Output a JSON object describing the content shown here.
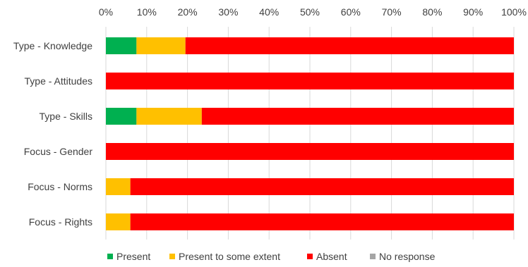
{
  "chart_data": {
    "type": "bar",
    "orientation": "horizontal",
    "stacked": "100%",
    "xlim": [
      0,
      100
    ],
    "x_tick_labels": [
      "0%",
      "10%",
      "20%",
      "30%",
      "40%",
      "50%",
      "60%",
      "70%",
      "80%",
      "90%",
      "100%"
    ],
    "categories": [
      "Type - Knowledge",
      "Type - Attitudes",
      "Type - Skills",
      "Focus - Gender",
      "Focus - Norms",
      "Focus - Rights"
    ],
    "series": [
      {
        "name": "Present",
        "color": "#00b050",
        "values": [
          7.5,
          0,
          7.5,
          0,
          0,
          0
        ]
      },
      {
        "name": "Present to some extent",
        "color": "#ffc000",
        "values": [
          12,
          0,
          16,
          0,
          6,
          6
        ]
      },
      {
        "name": "Absent",
        "color": "#ff0000",
        "values": [
          80.5,
          100,
          76.5,
          100,
          94,
          94
        ]
      },
      {
        "name": "No response",
        "color": "#a5a5a5",
        "values": [
          0,
          0,
          0,
          0,
          0,
          0
        ]
      }
    ],
    "grid": true,
    "legend_position": "bottom"
  }
}
